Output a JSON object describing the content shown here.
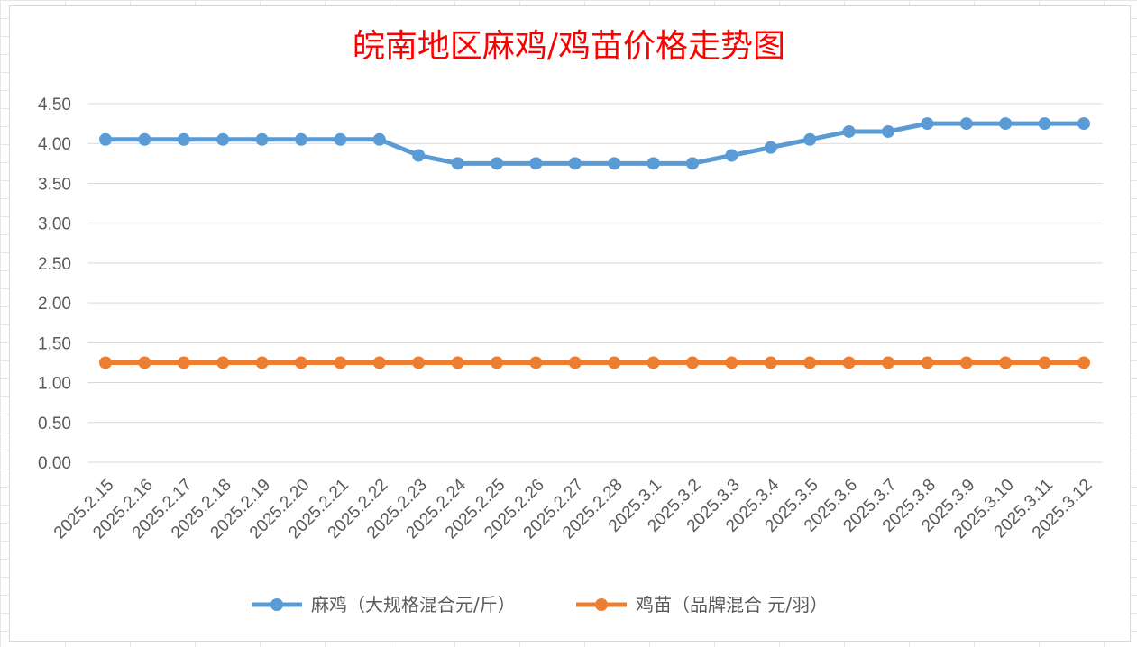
{
  "chart_data": {
    "type": "line",
    "title": "皖南地区麻鸡/鸡苗价格走势图",
    "xlabel": "",
    "ylabel": "",
    "ylim": [
      0,
      4.5
    ],
    "ytick_step": 0.5,
    "grid": true,
    "legend_position": "bottom",
    "categories": [
      "2025.2.15",
      "2025.2.16",
      "2025.2.17",
      "2025.2.18",
      "2025.2.19",
      "2025.2.20",
      "2025.2.21",
      "2025.2.22",
      "2025.2.23",
      "2025.2.24",
      "2025.2.25",
      "2025.2.26",
      "2025.2.27",
      "2025.2.28",
      "2025.3.1",
      "2025.3.2",
      "2025.3.3",
      "2025.3.4",
      "2025.3.5",
      "2025.3.6",
      "2025.3.7",
      "2025.3.8",
      "2025.3.9",
      "2025.3.10",
      "2025.3.11",
      "2025.3.12"
    ],
    "series": [
      {
        "name": "麻鸡（大规格混合元/斤）",
        "color": "#5b9bd5",
        "values": [
          4.05,
          4.05,
          4.05,
          4.05,
          4.05,
          4.05,
          4.05,
          4.05,
          3.85,
          3.75,
          3.75,
          3.75,
          3.75,
          3.75,
          3.75,
          3.75,
          3.85,
          3.95,
          4.05,
          4.15,
          4.15,
          4.25,
          4.25,
          4.25,
          4.25,
          4.25
        ]
      },
      {
        "name": "鸡苗（品牌混合 元/羽）",
        "color": "#ed7d31",
        "values": [
          1.25,
          1.25,
          1.25,
          1.25,
          1.25,
          1.25,
          1.25,
          1.25,
          1.25,
          1.25,
          1.25,
          1.25,
          1.25,
          1.25,
          1.25,
          1.25,
          1.25,
          1.25,
          1.25,
          1.25,
          1.25,
          1.25,
          1.25,
          1.25,
          1.25,
          1.25
        ]
      }
    ]
  }
}
